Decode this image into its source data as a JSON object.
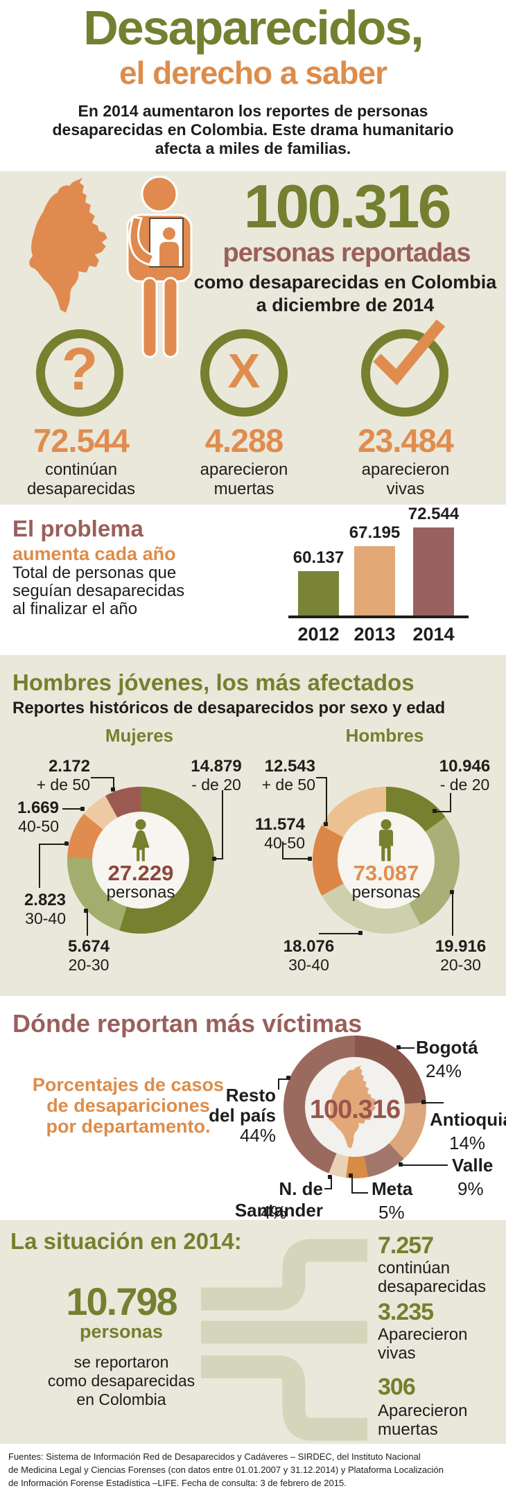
{
  "header": {
    "title_line1": "Desaparecidos,",
    "title_line2": "el derecho a saber",
    "intro1": "En 2014 aumentaron los reportes de personas",
    "intro2": "desaparecidas en Colombia. Este drama humanitario",
    "intro3": "afecta a miles de familias."
  },
  "summary": {
    "big_number": "100.316",
    "sub1": "personas reportadas",
    "sub2": "como desaparecidas en Colombia",
    "sub3": "a diciembre de 2014",
    "stats": [
      {
        "icon": "question-icon",
        "value": "72.544",
        "label1": "continúan",
        "label2": "desaparecidas"
      },
      {
        "icon": "x-icon",
        "value": "4.288",
        "label1": "aparecieron",
        "label2": "muertas"
      },
      {
        "icon": "check-icon",
        "value": "23.484",
        "label1": "aparecieron",
        "label2": "vivas"
      }
    ]
  },
  "problem": {
    "title": "El problema",
    "subtitle": "aumenta cada año",
    "desc1": "Total de personas que",
    "desc2": "seguían desaparecidas",
    "desc3": "al finalizar el año"
  },
  "sex_age": {
    "title": "Hombres jóvenes, los más afectados",
    "subtitle": "Reportes históricos de desaparecidos por sexo y edad",
    "mujeres": {
      "heading": "Mujeres",
      "total": "27.229",
      "total_label": "personas",
      "labels": [
        {
          "value": "2.172",
          "range": "+ de 50"
        },
        {
          "value": "1.669",
          "range": "40-50"
        },
        {
          "value": "2.823",
          "range": "30-40"
        },
        {
          "value": "5.674",
          "range": "20-30"
        },
        {
          "value": "14.879",
          "range": "- de 20"
        }
      ]
    },
    "hombres": {
      "heading": "Hombres",
      "total": "73.087",
      "total_label": "personas",
      "labels": [
        {
          "value": "12.543",
          "range": "+ de 50"
        },
        {
          "value": "11.574",
          "range": "40-50"
        },
        {
          "value": "18.076",
          "range": "30-40"
        },
        {
          "value": "19.916",
          "range": "20-30"
        },
        {
          "value": "10.946",
          "range": "- de 20"
        }
      ]
    }
  },
  "regions": {
    "title": "Dónde reportan más víctimas",
    "desc1": "Porcentajes de casos",
    "desc2": "de desapariciones",
    "desc3": "por departamento.",
    "center_number": "100.316",
    "labels": [
      {
        "name": "Bogotá",
        "pct": "24%"
      },
      {
        "name": "Antioquia",
        "pct": "14%"
      },
      {
        "name": "Valle",
        "pct": "9%"
      },
      {
        "name": "Meta",
        "pct": "5%"
      },
      {
        "name": "N. de Santander",
        "pct": "4%"
      },
      {
        "name": "Resto",
        "name2": "del país",
        "pct": "44%"
      }
    ]
  },
  "situation": {
    "title": "La situación en 2014:",
    "number": "10.798",
    "number_label": "personas",
    "desc1": "se reportaron",
    "desc2": "como desaparecidas",
    "desc3": "en Colombia",
    "outcomes": [
      {
        "value": "7.257",
        "label1": "continúan",
        "label2": "desaparecidas"
      },
      {
        "value": "3.235",
        "label1": "Aparecieron",
        "label2": "vivas"
      },
      {
        "value": "306",
        "label1": "Aparecieron",
        "label2": "muertas"
      }
    ]
  },
  "sources": {
    "line1": "Fuentes: Sistema de Información Red de Desaparecidos y Cadáveres – SIRDEC, del Instituto Nacional",
    "line2": "de Medicina Legal y Ciencias Forenses (con datos entre 01.01.2007 y 31.12.2014) y Plataforma Localización",
    "line3": "de Información Forense Estadística –LIFE. Fecha de consulta: 3 de febrero de 2015."
  },
  "colors": {
    "olive": "#73802f",
    "orange": "#df8c4e",
    "maroon": "#9a5f5a",
    "beige": "#eae8da",
    "ribbon": "#d5d5bb"
  },
  "chart_data": [
    {
      "type": "bar",
      "title": "El problema aumenta cada año",
      "categories": [
        "2012",
        "2013",
        "2014"
      ],
      "values": [
        60137,
        67195,
        72544
      ],
      "value_labels": [
        "60.137",
        "67.195",
        "72.544"
      ],
      "colors": [
        "#7a8438",
        "#e2a876",
        "#99625f"
      ],
      "ylabel": "Total de personas que seguían desaparecidas al finalizar el año"
    },
    {
      "type": "pie",
      "title": "Mujeres",
      "total_label": "27.229 personas",
      "segments": [
        {
          "label": "- de 20",
          "value": 14879,
          "color": "#76802f"
        },
        {
          "label": "20-30",
          "value": 5674,
          "color": "#a3ad6e"
        },
        {
          "label": "30-40",
          "value": 2823,
          "color": "#df8c4e"
        },
        {
          "label": "40-50",
          "value": 1669,
          "color": "#eecaa4"
        },
        {
          "label": "+ de 50",
          "value": 2172,
          "color": "#9b5a51"
        }
      ]
    },
    {
      "type": "pie",
      "title": "Hombres",
      "total_label": "73.087 personas",
      "segments": [
        {
          "label": "- de 20",
          "value": 10946,
          "color": "#76802f"
        },
        {
          "label": "20-30",
          "value": 19916,
          "color": "#a8b078"
        },
        {
          "label": "30-40",
          "value": 18076,
          "color": "#ccd0ac"
        },
        {
          "label": "40-50",
          "value": 11574,
          "color": "#dc8747"
        },
        {
          "label": "+ de 50",
          "value": 12543,
          "color": "#ecc191"
        }
      ]
    },
    {
      "type": "pie",
      "title": "Dónde reportan más víctimas (%)",
      "total_label": "100.316",
      "segments": [
        {
          "label": "Bogotá",
          "value": 24,
          "color": "#8a574a"
        },
        {
          "label": "Antioquia",
          "value": 14,
          "color": "#dca77c"
        },
        {
          "label": "Valle",
          "value": 9,
          "color": "#a3766c"
        },
        {
          "label": "Meta",
          "value": 5,
          "color": "#d88b44"
        },
        {
          "label": "N. de Santander",
          "value": 4,
          "color": "#ead0b4"
        },
        {
          "label": "Resto del país",
          "value": 44,
          "color": "#9b6a5f"
        }
      ]
    }
  ]
}
